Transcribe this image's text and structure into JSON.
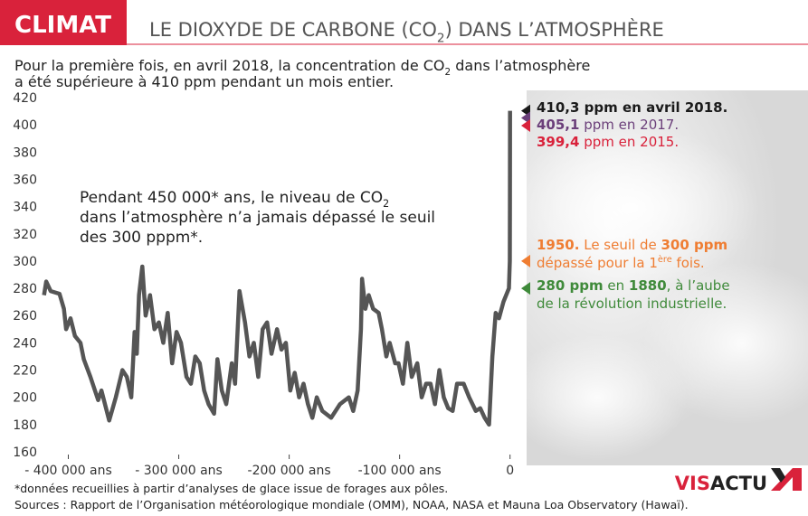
{
  "chart_data": {
    "type": "line",
    "header": "CLIMAT",
    "title": [
      [
        {
          "text": "LE DIOXYDE DE CARBONE (CO"
        },
        {
          "text": "2",
          "sub": true
        },
        {
          "text": ") DANS L’ATMOSPHÈRE"
        }
      ]
    ],
    "subtitle": [
      [
        {
          "text": "Pour la première fois, en avril 2018, la concentration de CO"
        },
        {
          "text": "2",
          "sub": true
        },
        {
          "text": " dans l’atmosphère"
        }
      ],
      [
        {
          "text": "a été supérieure à 410 ppm pendant un mois entier."
        }
      ]
    ],
    "note": [
      [
        {
          "text": "Pendant 450 000* ans, le niveau de CO"
        },
        {
          "text": "2",
          "sub": true
        }
      ],
      [
        {
          "text": "dans l’atmosphère n’a jamais dépassé le seuil"
        }
      ],
      [
        {
          "text": "des 300 pppm*."
        }
      ]
    ],
    "color": "#555555",
    "x": [
      -422000,
      -420000,
      -416000,
      -408000,
      -404000,
      -402000,
      -398000,
      -394000,
      -389000,
      -386000,
      -380000,
      -373000,
      -370000,
      -363000,
      -357000,
      -351000,
      -347000,
      -343000,
      -340000,
      -338000,
      -336000,
      -333000,
      -330000,
      -326000,
      -322000,
      -318000,
      -314000,
      -310000,
      -306000,
      -302000,
      -298000,
      -293000,
      -289000,
      -285000,
      -281000,
      -277000,
      -273000,
      -268000,
      -265000,
      -261000,
      -257000,
      -252000,
      -249000,
      -245000,
      -240000,
      -236000,
      -232000,
      -228000,
      -224000,
      -220000,
      -216000,
      -211000,
      -207000,
      -203000,
      -199000,
      -195000,
      -191000,
      -187000,
      -183000,
      -179000,
      -175000,
      -170000,
      -162000,
      -154000,
      -146000,
      -142000,
      -138000,
      -135000,
      -134000,
      -131000,
      -128000,
      -124000,
      -119000,
      -116000,
      -112000,
      -109000,
      -104000,
      -101000,
      -97000,
      -93000,
      -89000,
      -84000,
      -80000,
      -76000,
      -72000,
      -68000,
      -64000,
      -60000,
      -56000,
      -52000,
      -48000,
      -42000,
      -37000,
      -31000,
      -27000,
      -23000,
      -19000,
      -16000,
      -13000,
      -10000,
      -6000,
      -1000,
      -200,
      -100,
      0
    ],
    "values": [
      275,
      285,
      278,
      276,
      265,
      250,
      258,
      245,
      240,
      228,
      215,
      198,
      205,
      183,
      200,
      220,
      215,
      200,
      248,
      232,
      275,
      296,
      260,
      275,
      250,
      255,
      240,
      262,
      225,
      248,
      240,
      215,
      210,
      230,
      225,
      205,
      195,
      188,
      228,
      205,
      195,
      225,
      210,
      278,
      255,
      230,
      240,
      215,
      250,
      255,
      232,
      250,
      235,
      240,
      205,
      218,
      200,
      210,
      195,
      185,
      200,
      190,
      185,
      195,
      200,
      190,
      205,
      250,
      287,
      265,
      275,
      265,
      262,
      250,
      230,
      240,
      225,
      225,
      210,
      240,
      215,
      225,
      200,
      210,
      210,
      195,
      220,
      200,
      192,
      190,
      210,
      210,
      200,
      190,
      192,
      185,
      180,
      230,
      262,
      258,
      270,
      280,
      300,
      340,
      410.3
    ],
    "xlim": [
      -425000,
      15000
    ],
    "ylim": [
      160,
      420
    ],
    "xticks": [
      {
        "value": -400000,
        "label": "- 400 000 ans"
      },
      {
        "value": -300000,
        "label": "- 300 000 ans"
      },
      {
        "value": -200000,
        "label": "-200 000 ans"
      },
      {
        "value": -100000,
        "label": "-100 000 ans"
      },
      0
    ],
    "yticks": [
      160,
      180,
      200,
      220,
      240,
      260,
      280,
      300,
      320,
      340,
      360,
      380,
      400,
      420
    ],
    "grid": false,
    "annotations": [
      {
        "value": 410.3,
        "color": "#1a1a1a",
        "lines": [
          [
            {
              "text": "410,3 ppm en avril 2018.",
              "bold": true
            }
          ]
        ]
      },
      {
        "value": 405.1,
        "color": "#6b3f7a",
        "lines": [
          [
            {
              "text": "405,1",
              "bold": true
            },
            {
              "text": " ppm en 2017."
            }
          ]
        ]
      },
      {
        "value": 399.4,
        "color": "#d9223b",
        "lines": [
          [
            {
              "text": "399,4",
              "bold": true
            },
            {
              "text": " ppm en 2015."
            }
          ]
        ]
      },
      {
        "value": 300,
        "color": "#ef7d32",
        "lines": [
          [
            {
              "text": "1950.",
              "bold": true
            },
            {
              "text": " Le seuil de "
            },
            {
              "text": "300 ppm",
              "bold": true
            }
          ],
          [
            {
              "text": "dépassé pour la 1"
            },
            {
              "text": "ère",
              "sup": true
            },
            {
              "text": " fois."
            }
          ]
        ]
      },
      {
        "value": 280,
        "color": "#3f8a3a",
        "lines": [
          [
            {
              "text": "280 ppm",
              "bold": true
            },
            {
              "text": " en "
            },
            {
              "text": "1880",
              "bold": true
            },
            {
              "text": ", à l’aube"
            }
          ],
          [
            {
              "text": "de la révolution industrielle."
            }
          ]
        ]
      }
    ],
    "footnote": "*données recueillies à partir d’analyses de glace issue de forages aux pôles.",
    "source": "Sources : Rapport de l’Organisation météorologique mondiale (OMM), NOAA, NASA et Mauna Loa Observatory (Hawaï).",
    "logo": [
      {
        "text": "VIS",
        "color": "#d9223b"
      },
      {
        "text": "ACTU",
        "color": "#222222"
      }
    ]
  }
}
